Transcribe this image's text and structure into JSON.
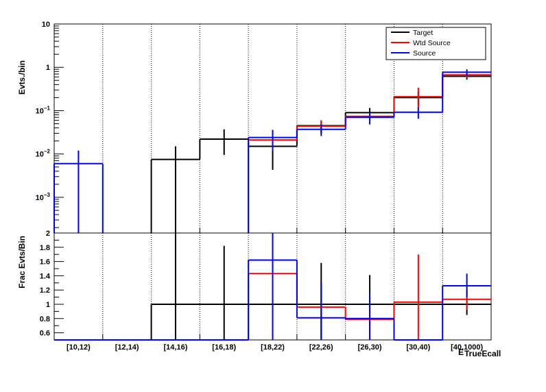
{
  "chart_data": [
    {
      "type": "step",
      "panel": "top",
      "ylabel": "Evts./bin",
      "yscale": "log",
      "ylim": [
        0.00015,
        10
      ],
      "y_tick_labels": [
        {
          "value": 10,
          "mantissa": "10",
          "exp": ""
        },
        {
          "value": 1,
          "mantissa": "1",
          "exp": ""
        },
        {
          "value": 0.1,
          "mantissa": "10",
          "exp": "−1"
        },
        {
          "value": 0.01,
          "mantissa": "10",
          "exp": "−2"
        },
        {
          "value": 0.001,
          "mantissa": "10",
          "exp": "−3"
        }
      ],
      "categories": [
        "[10,12)",
        "[12,14)",
        "[14,16)",
        "[16,18)",
        "[18,22)",
        "[22,26)",
        "[26,30)",
        "[30,40)",
        "[40,1000)"
      ],
      "series": [
        {
          "name": "Target",
          "color": "#000000",
          "values": [
            null,
            null,
            0.0075,
            0.022,
            0.015,
            0.045,
            0.09,
            0.2,
            0.62
          ],
          "err_low": [
            null,
            null,
            0.00015,
            0.0095,
            0.0043,
            0.032,
            0.072,
            0.13,
            0.52
          ],
          "err_high": [
            null,
            null,
            0.015,
            0.037,
            0.022,
            0.058,
            0.115,
            0.28,
            0.72
          ]
        },
        {
          "name": "Wtd Source",
          "color": "#ff0000",
          "values": [
            null,
            null,
            null,
            null,
            0.021,
            0.044,
            0.074,
            0.21,
            0.67
          ],
          "err_low": [
            null,
            null,
            null,
            null,
            0.012,
            0.03,
            0.056,
            0.11,
            0.57
          ],
          "err_high": [
            null,
            null,
            null,
            null,
            0.03,
            0.06,
            0.09,
            0.34,
            0.78
          ]
        },
        {
          "name": "Source",
          "color": "#0000ff",
          "values": [
            0.006,
            null,
            null,
            null,
            0.024,
            0.037,
            0.07,
            0.092,
            0.77
          ],
          "err_low": [
            0.00015,
            null,
            null,
            null,
            0.012,
            0.026,
            0.048,
            0.065,
            0.64
          ],
          "err_high": [
            0.012,
            null,
            null,
            null,
            0.036,
            0.048,
            0.09,
            0.12,
            0.9
          ]
        }
      ],
      "legend": {
        "position": "top-right",
        "entries": [
          "Target",
          "Wtd Source",
          "Source"
        ]
      },
      "grid": {
        "vertical_dotted_at_bin_edges": true
      }
    },
    {
      "type": "step",
      "panel": "bottom",
      "ylabel": "Frac Evts/Bin",
      "ylim": [
        0.5,
        2
      ],
      "y_ticks": [
        0.6,
        0.8,
        1,
        1.2,
        1.4,
        1.6,
        1.8,
        2
      ],
      "y_tick_labels": [
        "0.6",
        "0.8",
        "1",
        "1.2",
        "1.4",
        "1.6",
        "1.8",
        "2"
      ],
      "categories": [
        "[10,12)",
        "[12,14)",
        "[14,16)",
        "[16,18)",
        "[18,22)",
        "[22,26)",
        "[26,30)",
        "[30,40)",
        "[40,1000)"
      ],
      "xlabel": "E",
      "xlabel_sub": "TrueEcall",
      "series": [
        {
          "name": "Target",
          "color": "#000000",
          "values": [
            0.5,
            0.5,
            1,
            1,
            1,
            1,
            1,
            1,
            1
          ],
          "err_low": [
            null,
            null,
            0.5,
            0.5,
            null,
            0.5,
            0.5,
            null,
            0.85
          ],
          "err_high": [
            null,
            null,
            2,
            1.82,
            null,
            1.58,
            1.41,
            null,
            1.2
          ]
        },
        {
          "name": "Wtd Source",
          "color": "#ff0000",
          "values": [
            0.5,
            0.5,
            0.5,
            0.5,
            1.43,
            0.96,
            0.79,
            1.03,
            1.07
          ],
          "err_low": [
            null,
            null,
            null,
            null,
            null,
            0.5,
            0.5,
            0.5,
            0.92
          ],
          "err_high": [
            null,
            null,
            null,
            null,
            null,
            1.3,
            1.0,
            1.7,
            1.25
          ]
        },
        {
          "name": "Source",
          "color": "#0000ff",
          "values": [
            0.5,
            0.5,
            0.5,
            0.5,
            1.62,
            0.81,
            0.8,
            0.5,
            1.26
          ],
          "err_low": [
            null,
            null,
            null,
            null,
            0.5,
            0.5,
            0.5,
            null,
            1.1
          ],
          "err_high": [
            null,
            null,
            null,
            null,
            2,
            1.3,
            1.15,
            null,
            1.43
          ]
        }
      ]
    }
  ]
}
